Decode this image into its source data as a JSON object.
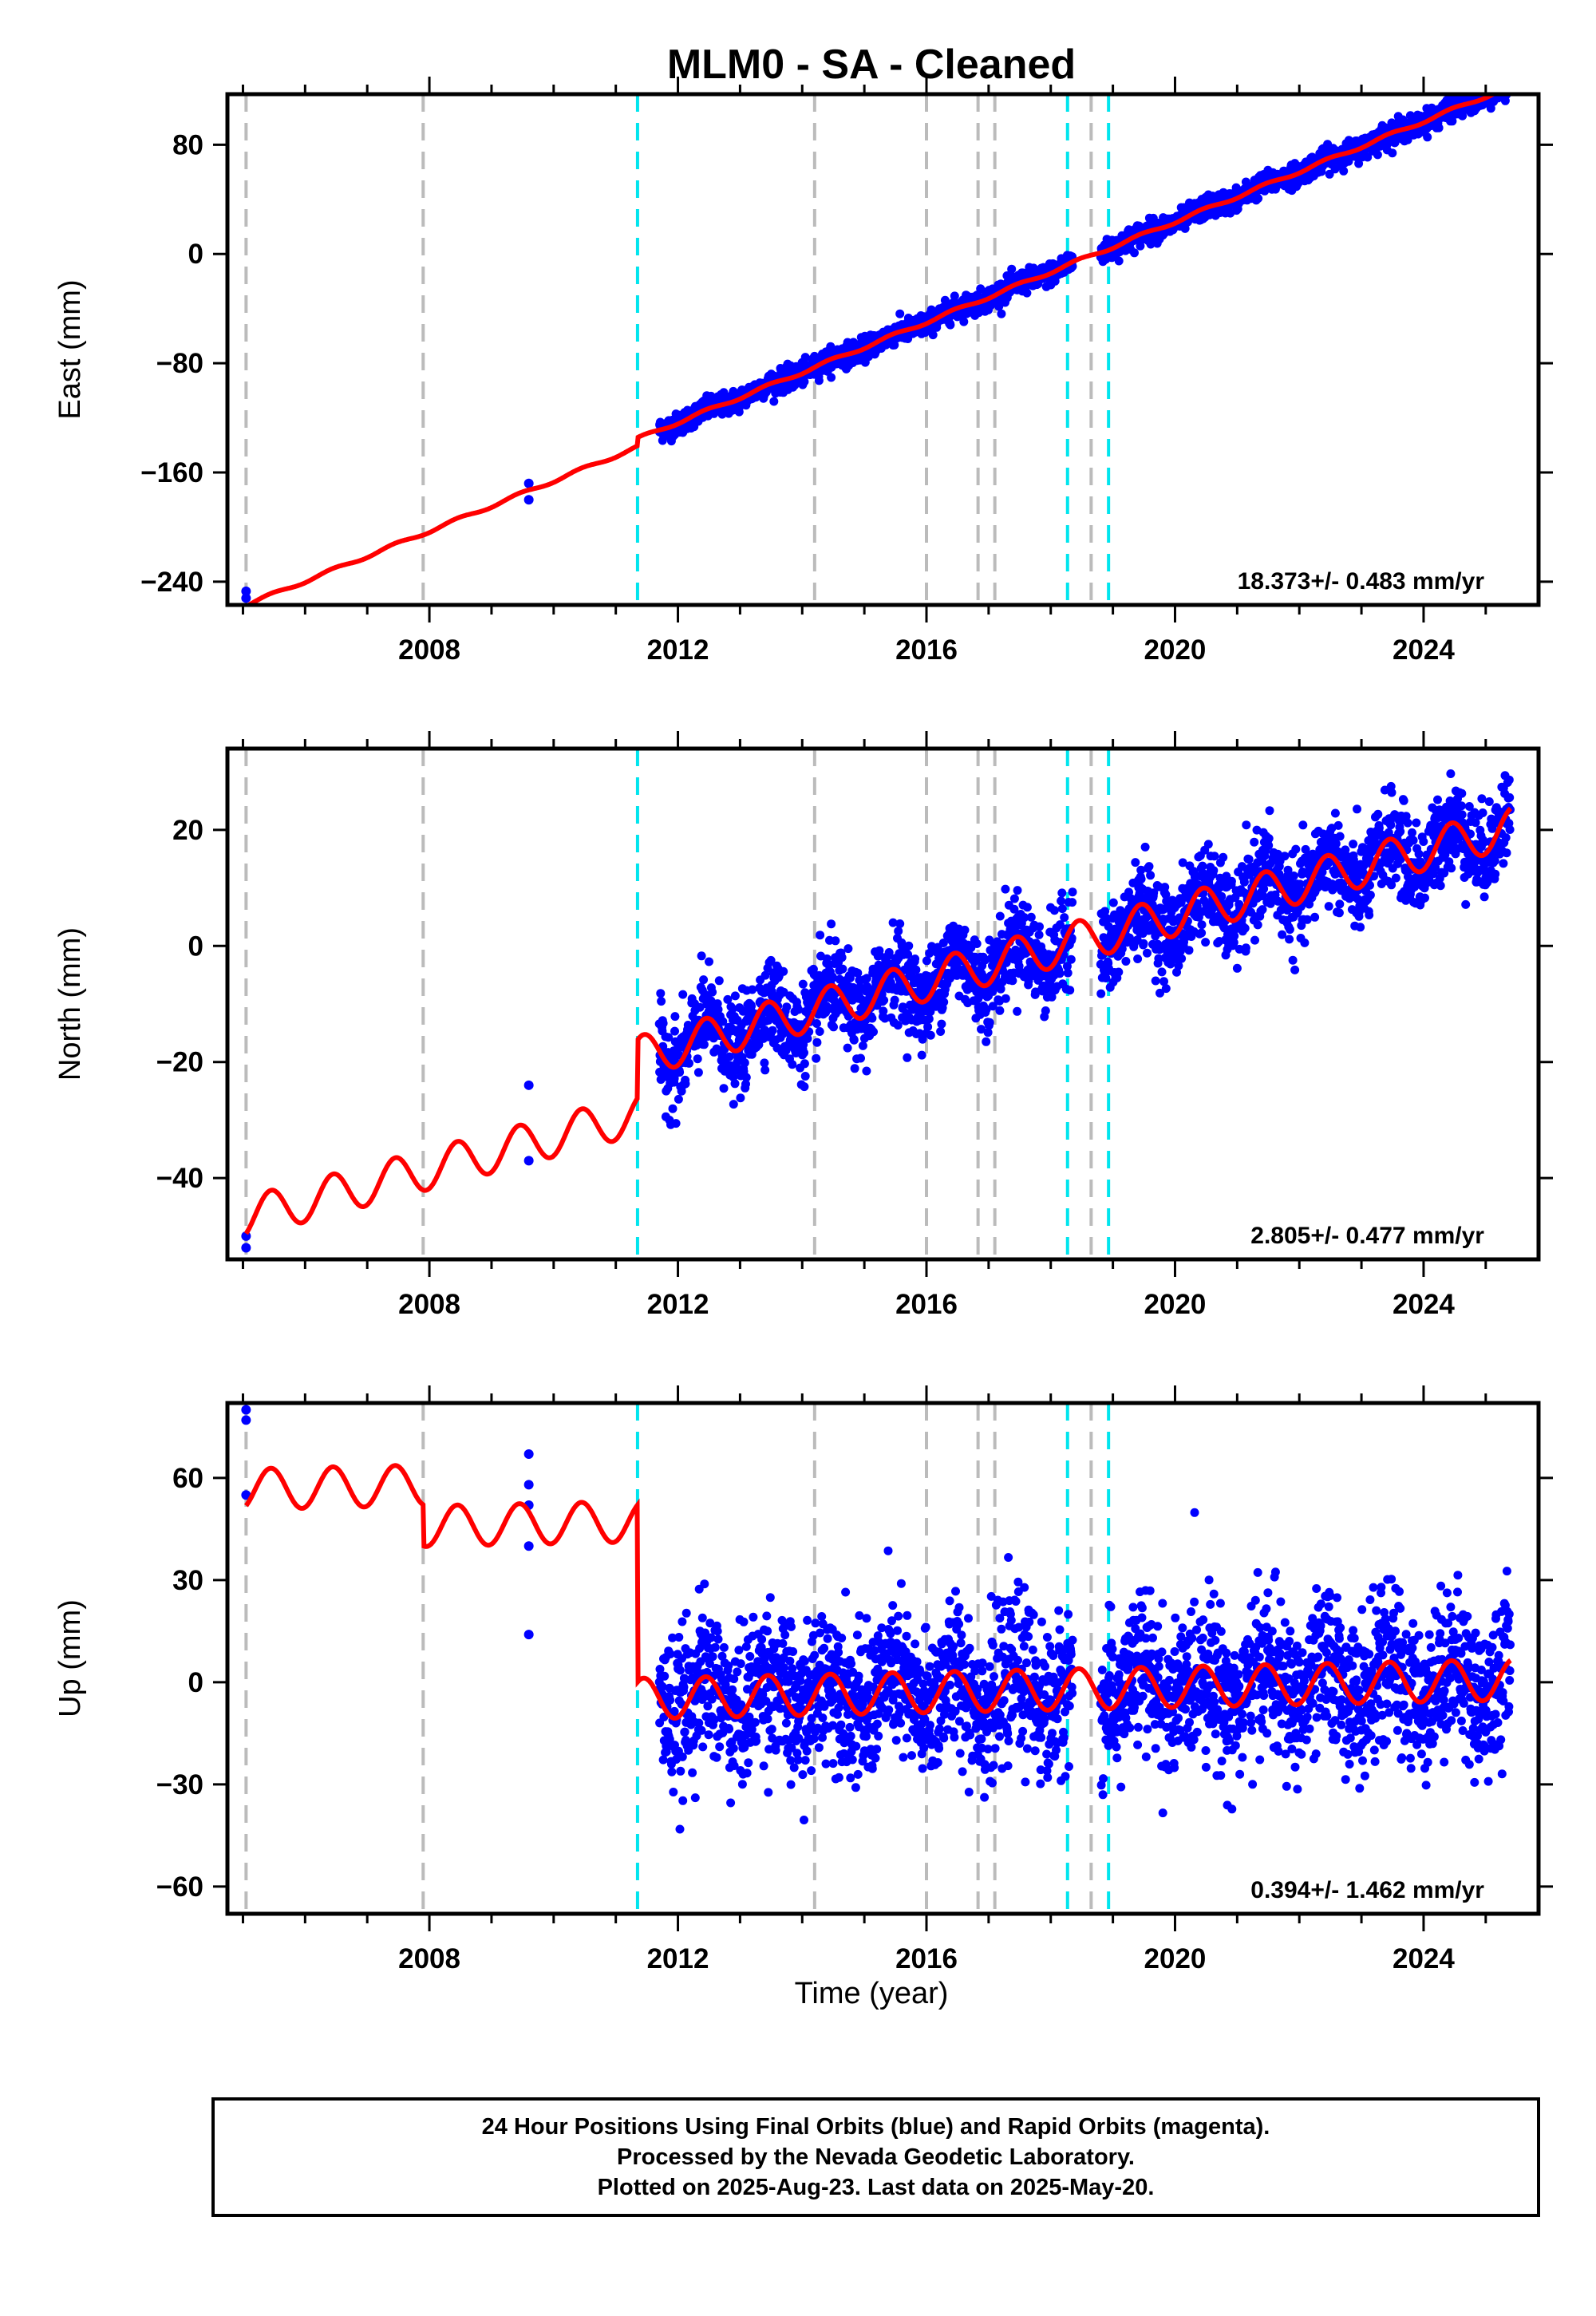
{
  "chart_data": {
    "type": "scatter",
    "title": "MLM0  - SA - Cleaned",
    "xlabel": "Time (year)",
    "xlim": [
      2004.75,
      2025.85
    ],
    "x_ticks": [
      "2008",
      "2012",
      "2016",
      "2020",
      "2024"
    ],
    "equipment_change_lines": [
      2005.05,
      2007.9,
      2014.2,
      2016.0,
      2016.83,
      2017.1,
      2018.65
    ],
    "offset_lines": [
      2011.35,
      2018.27,
      2018.93
    ],
    "colors": {
      "data_points": "#0000ff",
      "model_fit": "#ff0000",
      "equipment_line": "#bbbbbb",
      "offset_line": "#00e5ee"
    },
    "panels": [
      {
        "name": "East",
        "ylabel": "East (mm)",
        "ylim": [
          -257,
          117
        ],
        "y_ticks": [
          "80",
          "0",
          "-80",
          "-160",
          "-240"
        ],
        "y_tick_values": [
          80,
          0,
          -80,
          -160,
          -240
        ],
        "rate_label": "18.373+/- 0.483 mm/yr",
        "model": {
          "rate": 18.373,
          "ref_year": 2018.5,
          "ref_value": -4,
          "annual_amp": 1.2,
          "jumps": [
            {
              "year": 2011.35,
              "value": 6
            }
          ]
        },
        "scatter": {
          "start": 2011.7,
          "end": 2025.4,
          "gap_start": 2018.35,
          "gap_end": 2018.8,
          "noise": 4,
          "count": 2600
        },
        "sparse_points": [
          [
            2005.05,
            -247
          ],
          [
            2005.05,
            -252
          ],
          [
            2009.6,
            -168
          ],
          [
            2009.6,
            -180
          ]
        ]
      },
      {
        "name": "North",
        "ylabel": "North (mm)",
        "ylim": [
          -54,
          34
        ],
        "y_ticks": [
          "20",
          "0",
          "-20",
          "-40"
        ],
        "y_tick_values": [
          20,
          0,
          -20,
          -40
        ],
        "rate_label": "2.805+/- 0.477 mm/yr",
        "model": {
          "rate": 2.805,
          "ref_year": 2018.5,
          "ref_value": 1,
          "annual_amp": 3.5,
          "jumps": [
            {
              "year": 2011.35,
              "value": 10
            }
          ]
        },
        "scatter": {
          "start": 2011.7,
          "end": 2025.4,
          "gap_start": 2018.35,
          "gap_end": 2018.8,
          "noise": 3.8,
          "count": 2600
        },
        "sparse_points": [
          [
            2005.05,
            -50
          ],
          [
            2005.05,
            -52
          ],
          [
            2009.6,
            -24
          ],
          [
            2009.6,
            -37
          ]
        ]
      },
      {
        "name": "Up",
        "ylabel": "Up (mm)",
        "ylim": [
          -68,
          82
        ],
        "y_ticks": [
          "60",
          "30",
          "0",
          "-30",
          "-60"
        ],
        "y_tick_values": [
          60,
          30,
          0,
          -30,
          -60
        ],
        "rate_label": "0.394+/- 1.462 mm/yr",
        "model": {
          "rate": 0.394,
          "ref_year": 2018.5,
          "ref_value": -2,
          "annual_amp": 6,
          "jumps": [
            {
              "year": 2011.35,
              "value": -52
            },
            {
              "year": 2007.9,
              "value": -12
            }
          ]
        },
        "scatter": {
          "start": 2011.7,
          "end": 2025.4,
          "gap_start": 2018.35,
          "gap_end": 2018.8,
          "noise": 11,
          "count": 2600
        },
        "sparse_points": [
          [
            2005.05,
            80
          ],
          [
            2005.05,
            77
          ],
          [
            2005.05,
            55
          ],
          [
            2009.6,
            67
          ],
          [
            2009.6,
            58
          ],
          [
            2009.6,
            52
          ],
          [
            2009.6,
            40
          ],
          [
            2009.6,
            14
          ]
        ]
      }
    ]
  },
  "footer": {
    "line1": "24 Hour Positions Using Final Orbits (blue) and Rapid Orbits (magenta).",
    "line2": "Processed by the Nevada Geodetic Laboratory.",
    "line3": "Plotted on 2025-Aug-23. Last data on 2025-May-20."
  }
}
